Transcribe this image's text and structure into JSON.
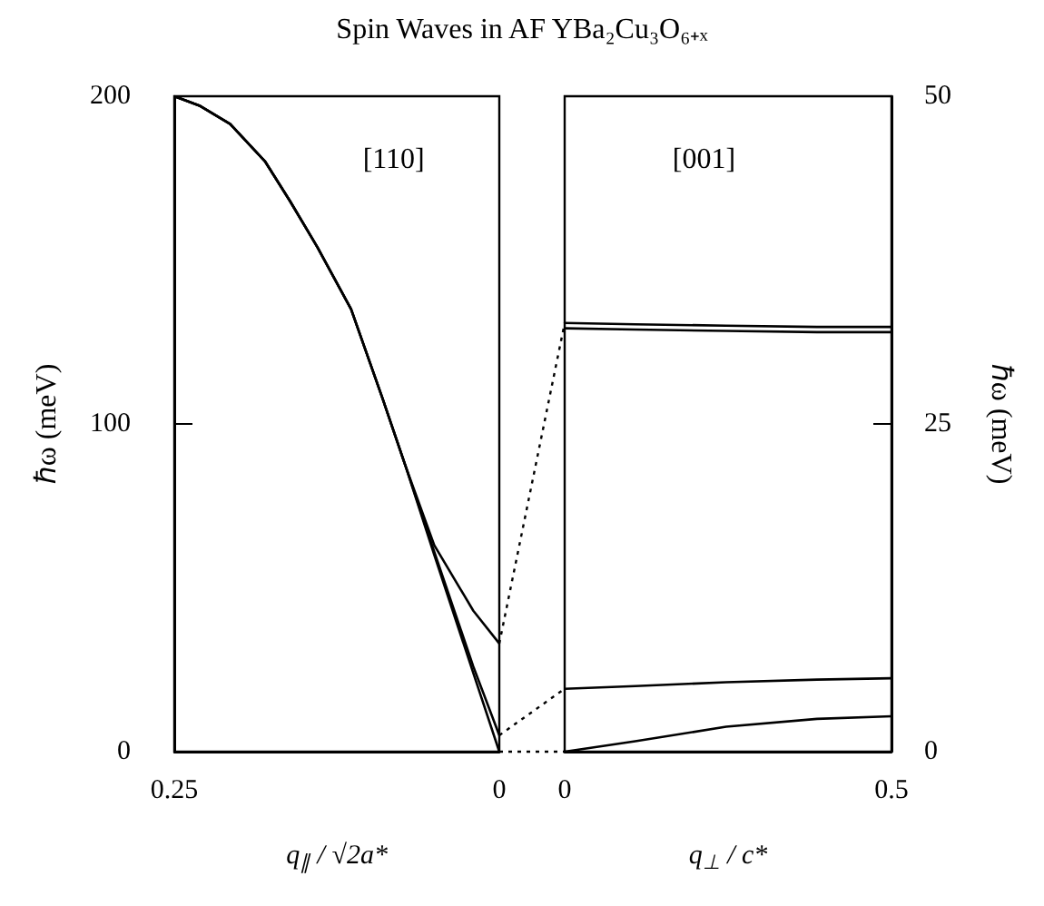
{
  "chart_data": [
    {
      "type": "line",
      "title": "Spin Waves in AF  YBa₂Cu₃O₆₊ₓ",
      "xlabel": "q$_{∥}$ / √2a*",
      "ylabel": "ℏω (meV)",
      "annotations": [
        "[110]"
      ],
      "line_style": "solid",
      "x": [
        0.25,
        0.23,
        0.207,
        0.18,
        0.161,
        0.14,
        0.114,
        0.09,
        0.072,
        0.05,
        0.02,
        0
      ],
      "xlim": [
        0.25,
        0
      ],
      "xticks": [
        0.25,
        0
      ],
      "ylim": [
        0,
        200
      ],
      "yticks": [
        0,
        100,
        200
      ],
      "series": [
        {
          "color": "#000000",
          "values": [
            200,
            197,
            191.5,
            180,
            168,
            154,
            135,
            108,
            87,
            63,
            43,
            33
          ]
        },
        {
          "color": "#000000",
          "values": [
            200,
            197,
            191.5,
            180,
            168,
            154,
            135,
            108,
            87,
            61,
            26,
            5
          ]
        },
        {
          "color": "#000000",
          "values": [
            200,
            197,
            191.5,
            180,
            168,
            154,
            135,
            108,
            87,
            60,
            24,
            0
          ]
        }
      ]
    },
    {
      "type": "line",
      "xlabel": "q$_{⊥}$ / c*",
      "y2label": "ℏω (meV)",
      "annotations": [
        "[001]"
      ],
      "line_style": "solid",
      "x": [
        0,
        0.108,
        0.247,
        0.386,
        0.5
      ],
      "xlim": [
        0,
        0.5
      ],
      "xticks": [
        0,
        0.5
      ],
      "y2lim": [
        0,
        50
      ],
      "y2ticks": [
        0,
        25,
        50
      ],
      "series": [
        {
          "color": "#000000",
          "axis": "y2",
          "values": [
            32.7,
            32.6,
            32.5,
            32.4,
            32.4
          ]
        },
        {
          "color": "#000000",
          "axis": "y2",
          "values": [
            4.8,
            5.0,
            5.3,
            5.5,
            5.6
          ]
        },
        {
          "color": "#000000",
          "axis": "y2",
          "values": [
            0,
            0.8,
            1.9,
            2.5,
            2.7
          ]
        },
        {
          "color": "#000000",
          "axis": "y2",
          "values": [
            32.3,
            32.2,
            32.1,
            32.0,
            32.0
          ]
        }
      ]
    }
  ]
}
